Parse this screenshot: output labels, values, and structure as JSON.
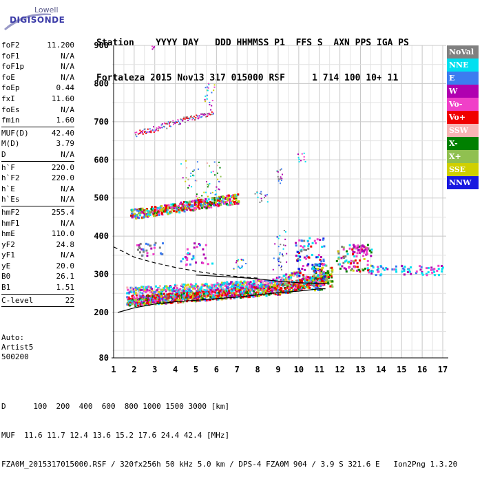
{
  "logo": {
    "line1": "Lowell",
    "line2": "DIGISONDE"
  },
  "header": {
    "labels": "Station    YYYY DAY   DDD HHMMSS P1  FFS S  AXN PPS IGA PS",
    "values": "Fortaleza 2015 Nov13 317 015000 RSF     1 714 100 10+ 11"
  },
  "params": [
    {
      "name": "foF2",
      "value": "11.200"
    },
    {
      "name": "foF1",
      "value": "N/A"
    },
    {
      "name": "foF1p",
      "value": "N/A"
    },
    {
      "name": "foE",
      "value": "N/A"
    },
    {
      "name": "foEp",
      "value": "0.44"
    },
    {
      "name": "fxI",
      "value": "11.60"
    },
    {
      "name": "foEs",
      "value": "N/A"
    },
    {
      "name": "fmin",
      "value": "1.60"
    },
    {
      "sep": true
    },
    {
      "name": "MUF(D)",
      "value": "42.40"
    },
    {
      "name": "M(D)",
      "value": "3.79"
    },
    {
      "name": "D",
      "value": "N/A"
    },
    {
      "sep": true
    },
    {
      "name": "h`F",
      "value": "220.0"
    },
    {
      "name": "h`F2",
      "value": "220.0"
    },
    {
      "name": "h`E",
      "value": "N/A"
    },
    {
      "name": "h`Es",
      "value": "N/A"
    },
    {
      "sep": true
    },
    {
      "name": "hmF2",
      "value": "255.4"
    },
    {
      "name": "hmF1",
      "value": "N/A"
    },
    {
      "name": "hmE",
      "value": "110.0"
    },
    {
      "name": "yF2",
      "value": "24.8"
    },
    {
      "name": "yF1",
      "value": "N/A"
    },
    {
      "name": "yE",
      "value": "20.0"
    },
    {
      "name": "B0",
      "value": "26.1"
    },
    {
      "name": "B1",
      "value": "1.51"
    },
    {
      "sep": true
    },
    {
      "name": "C-level",
      "value": "22"
    },
    {
      "sep": true
    }
  ],
  "auto": "Auto:\nArtist5\n500200",
  "legend": [
    {
      "label": "NoVal",
      "color": "#808080"
    },
    {
      "label": "NNE",
      "color": "#00e0f0"
    },
    {
      "label": "E",
      "color": "#3c7cf0"
    },
    {
      "label": "W",
      "color": "#b000b0"
    },
    {
      "label": "Vo-",
      "color": "#f040c8"
    },
    {
      "label": "Vo+",
      "color": "#f00000"
    },
    {
      "label": "SSW",
      "color": "#f8b4b4"
    },
    {
      "label": "X-",
      "color": "#008000"
    },
    {
      "label": "X+",
      "color": "#90c050"
    },
    {
      "label": "SSE",
      "color": "#d0d000"
    },
    {
      "label": "NNW",
      "color": "#1818e0"
    }
  ],
  "chart_data": {
    "type": "scatter",
    "title": "",
    "xlabel": "",
    "ylabel": "",
    "x_ticks": [
      1,
      2,
      3,
      4,
      5,
      6,
      7,
      8,
      9,
      10,
      11,
      12,
      13,
      14,
      15,
      16,
      17
    ],
    "y_ticks": [
      80,
      200,
      300,
      400,
      500,
      600,
      700,
      800,
      900
    ],
    "xlim": [
      1,
      17
    ],
    "grid": true,
    "traces": {
      "ordinary_profile_line": {
        "x": [
          1.2,
          2,
          3,
          4,
          5,
          6,
          7,
          8,
          9,
          10,
          11,
          11.3
        ],
        "y": [
          200,
          212,
          222,
          228,
          232,
          236,
          240,
          246,
          252,
          256,
          262,
          262
        ]
      },
      "dashed_profile_line": {
        "x": [
          1,
          2,
          3,
          4,
          5,
          6,
          7,
          8
        ],
        "y": [
          372,
          345,
          330,
          318,
          308,
          300,
          294,
          290
        ]
      },
      "solid_upper_line": {
        "x": [
          5,
          6,
          7,
          8,
          9,
          10,
          11,
          11.4
        ],
        "y": [
          298,
          295,
          292,
          288,
          282,
          278,
          276,
          276
        ]
      }
    }
  },
  "bottom": {
    "line1": "D      100  200  400  600  800 1000 1500 3000 [km]",
    "line2": "MUF  11.6 11.7 12.4 13.6 15.2 17.6 24.4 42.4 [MHz]",
    "line3": "FZA0M_2015317015000.RSF / 320fx256h 50 kHz 5.0 km / DPS-4 FZA0M 904 / 3.9 S 321.6 E   Ion2Png 1.3.20"
  }
}
